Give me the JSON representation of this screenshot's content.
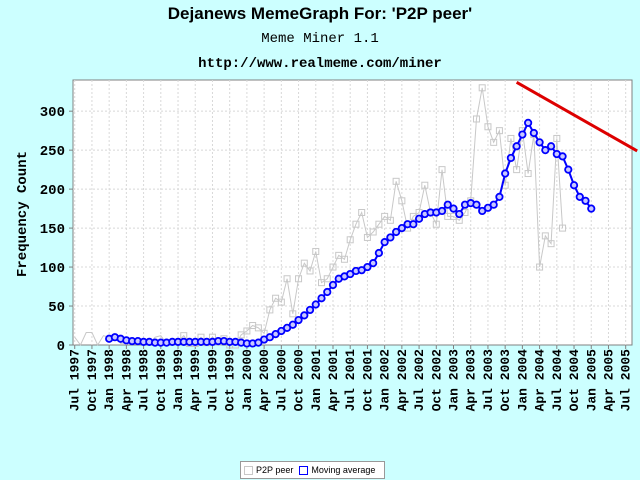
{
  "page": {
    "background": "#ccffff"
  },
  "chart_data": {
    "type": "line",
    "title": "Dejanews MemeGraph For: 'P2P peer'",
    "subtitle": "Meme Miner 1.1",
    "url": "http://www.realmeme.com/miner",
    "ylabel": "Frequency Count",
    "xlabel": "",
    "ylim": [
      0,
      340
    ],
    "yticks": [
      0,
      50,
      100,
      150,
      200,
      250,
      300
    ],
    "grid": true,
    "legend_position": "bottom",
    "xticks": [
      "Jul 1997",
      "Oct 1997",
      "Jan 1998",
      "Apr 1998",
      "Jul 1998",
      "Oct 1998",
      "Jan 1999",
      "Apr 1999",
      "Jul 1999",
      "Oct 1999",
      "Jan 2000",
      "Apr 2000",
      "Jul 2000",
      "Oct 2000",
      "Jan 2001",
      "Apr 2001",
      "Jul 2001",
      "Oct 2001",
      "Jan 2002",
      "Apr 2002",
      "Jul 2002",
      "Oct 2002",
      "Jan 2003",
      "Apr 2003",
      "Jul 2003",
      "Oct 2003",
      "Jan 2004",
      "Apr 2004",
      "Jul 2004",
      "Oct 2004",
      "Jan 2005",
      "Apr 2005",
      "Jul 2005"
    ],
    "series": [
      {
        "name": "P2P peer",
        "color": "#c8c8c8",
        "marker": "open-square",
        "start": "Jul 1997",
        "values": [
          10,
          0,
          16,
          16,
          0,
          12,
          10,
          15,
          2,
          3,
          8,
          3,
          3,
          1,
          10,
          12,
          2,
          2,
          4,
          12,
          2,
          2,
          10,
          3,
          10,
          4,
          8,
          0,
          0,
          13,
          18,
          25,
          22,
          15,
          45,
          60,
          55,
          85,
          40,
          85,
          105,
          95,
          120,
          80,
          85,
          100,
          115,
          110,
          135,
          155,
          170,
          138,
          145,
          155,
          165,
          160,
          210,
          185,
          150,
          165,
          170,
          205,
          170,
          155,
          225,
          165,
          165,
          160,
          170,
          185,
          290,
          330,
          280,
          260,
          275,
          205,
          265,
          225,
          275,
          220,
          270,
          100,
          140,
          130,
          265,
          150
        ],
        "first_marked": 18
      },
      {
        "name": "Moving average",
        "color": "#0000ff",
        "marker": "open-circle",
        "start": "Jan 1998",
        "values": [
          8,
          10,
          8,
          6,
          5,
          5,
          4,
          4,
          3,
          3,
          3,
          4,
          4,
          4,
          4,
          4,
          4,
          4,
          4,
          5,
          5,
          4,
          4,
          3,
          2,
          2,
          3,
          7,
          10,
          14,
          18,
          22,
          26,
          32,
          38,
          45,
          52,
          60,
          68,
          77,
          85,
          88,
          91,
          95,
          96,
          100,
          105,
          118,
          132,
          138,
          145,
          150,
          155,
          155,
          162,
          168,
          170,
          170,
          172,
          180,
          175,
          168,
          180,
          182,
          180,
          172,
          176,
          180,
          190,
          220,
          240,
          255,
          270,
          285,
          272,
          260,
          250,
          255,
          245,
          242,
          225,
          205,
          190,
          185,
          175
        ]
      },
      {
        "name": "",
        "type": "trend",
        "color": "#dd0000",
        "x": [
          "Dec 2003",
          "Sep 2005"
        ],
        "values": [
          337,
          249
        ]
      }
    ]
  }
}
